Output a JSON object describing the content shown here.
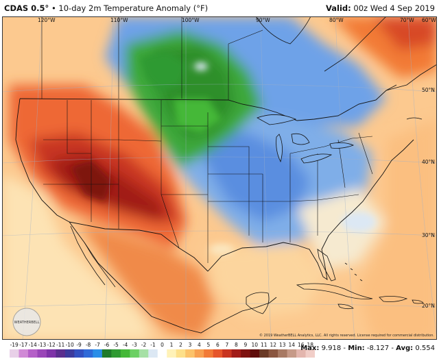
{
  "header": {
    "product": "CDAS 0.5°",
    "separator": "•",
    "description": "10-day 2m Temperature Anomaly (°F)",
    "valid_label": "Valid:",
    "valid_value": "00z Wed 4 Sep 2019"
  },
  "map": {
    "longitude_labels": [
      "120°W",
      "110°W",
      "100°W",
      "90°W",
      "80°W",
      "70°W",
      "60°W"
    ],
    "latitude_labels": [
      "50°N",
      "40°N",
      "30°N",
      "20°N"
    ],
    "credit": "© 2019 WeatherBELL Analytics, LLC. All rights reserved. License required for commercial distribution.",
    "logo_text": "WEATHERBELL"
  },
  "legend": {
    "ticks": [
      "-19",
      "-17",
      "-14",
      "-13",
      "-12",
      "-11",
      "-10",
      "-9",
      "-8",
      "-7",
      "-6",
      "-5",
      "-4",
      "-3",
      "-2",
      "-1",
      "0",
      "1",
      "2",
      "3",
      "4",
      "5",
      "6",
      "7",
      "8",
      "9",
      "10",
      "11",
      "12",
      "13",
      "14",
      "16",
      "18"
    ],
    "colors": [
      "#e8d0e8",
      "#d08ad6",
      "#b560c8",
      "#9a46b8",
      "#7e33a8",
      "#5a2e8e",
      "#3c3a9c",
      "#3250c0",
      "#2f6ad8",
      "#2a8ee8",
      "#1f7a2a",
      "#2f9a32",
      "#44b838",
      "#6cd064",
      "#a6e0a6",
      "#dce8f4",
      "#ffffff",
      "#fff2b8",
      "#fde08a",
      "#fcc36a",
      "#f8a050",
      "#f27a36",
      "#e6552a",
      "#c83420",
      "#a11c18",
      "#7e1210",
      "#5e0c0a",
      "#6a3a26",
      "#8a5640",
      "#a87a64",
      "#c69a88",
      "#e3b6ae",
      "#f1cec8"
    ]
  },
  "stats": {
    "max_label": "Max:",
    "max_value": "9.918",
    "min_label": "Min:",
    "min_value": "-8.127",
    "avg_label": "Avg:",
    "avg_value": "0.554"
  }
}
